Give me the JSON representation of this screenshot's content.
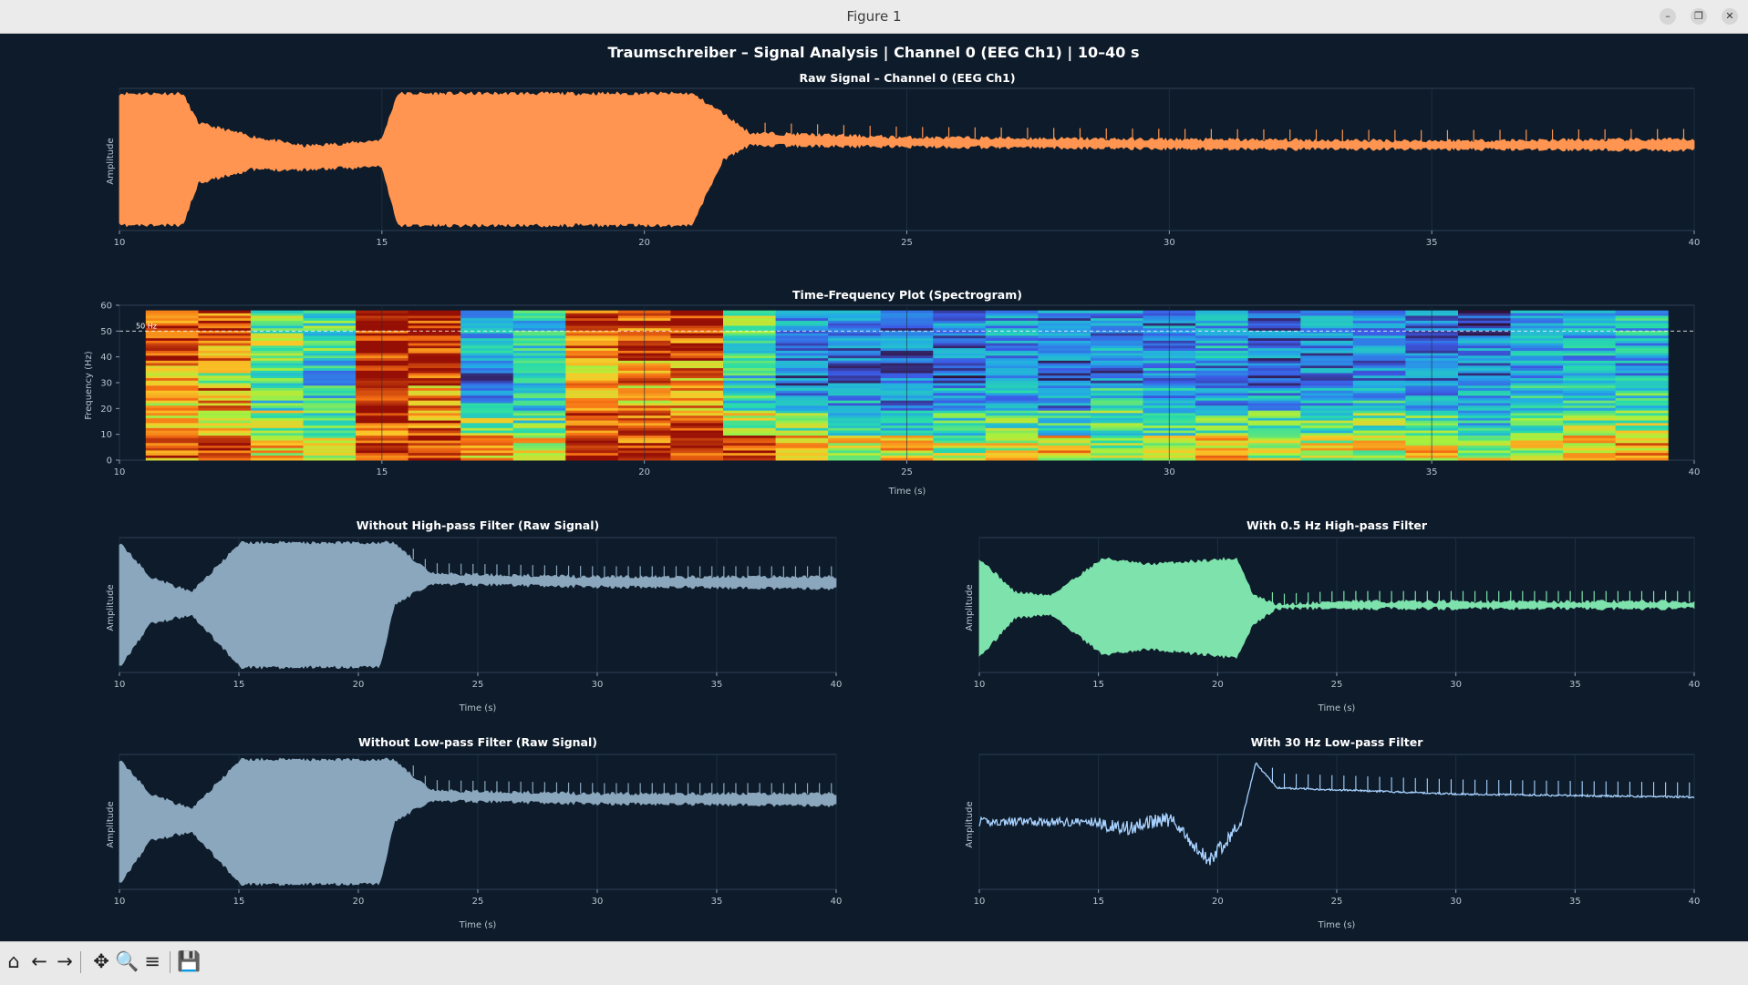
{
  "window": {
    "title": "Figure 1",
    "controls": [
      "–",
      "❐",
      "✕"
    ]
  },
  "figure": {
    "suptitle": "Traumschreiber – Signal Analysis  |  Channel 0 (EEG Ch1)  |  10–40 s"
  },
  "panels": {
    "raw": {
      "title": "Raw Signal – Channel 0 (EEG Ch1)",
      "ylabel": "Amplitude",
      "color": "#ff9550"
    },
    "spectrogram": {
      "title": "Time-Frequency Plot (Spectrogram)",
      "ylabel": "Frequency (Hz)",
      "xlabel": "Time (s)",
      "yticks": [
        "0",
        "10",
        "20",
        "30",
        "40",
        "50",
        "60"
      ],
      "line_label": "50 Hz"
    },
    "no_highpass": {
      "title": "Without High-pass Filter (Raw Signal)",
      "ylabel": "Amplitude",
      "xlabel": "Time (s)",
      "color": "#8aa7bd"
    },
    "highpass": {
      "title": "With 0.5 Hz High-pass Filter",
      "ylabel": "Amplitude",
      "xlabel": "Time (s)",
      "color": "#7de2ab"
    },
    "no_lowpass": {
      "title": "Without Low-pass Filter (Raw Signal)",
      "ylabel": "Amplitude",
      "xlabel": "Time (s)",
      "color": "#8aa7bd"
    },
    "lowpass": {
      "title": "With 30 Hz Low-pass Filter",
      "ylabel": "Amplitude",
      "xlabel": "Time (s)",
      "color": "#a8d2ff"
    },
    "xticks": [
      "10",
      "15",
      "20",
      "25",
      "30",
      "35",
      "40"
    ]
  },
  "toolbar": {
    "home": "⌂",
    "back": "←",
    "forward": "→",
    "pan": "✥",
    "zoom": "🔍",
    "configure": "≡",
    "save": "💾"
  },
  "chart_data": [
    {
      "type": "line",
      "title": "Raw Signal – Channel 0 (EEG Ch1)",
      "ylabel": "Amplitude",
      "xlim": [
        10,
        40
      ],
      "x": [
        10.0,
        10.6,
        11.2,
        11.5,
        12.5,
        13.5,
        14.5,
        15.0,
        15.3,
        18.0,
        20.9,
        21.5,
        22.0,
        25.0,
        30.0,
        35.0,
        40.0
      ],
      "y": [
        0.0,
        0.0,
        0.0,
        0.0,
        0.0,
        0.0,
        0.0,
        0.0,
        0.0,
        0.0,
        0.0,
        0.55,
        0.3,
        0.25,
        0.22,
        0.2,
        0.2
      ],
      "envelope_max": [
        1.0,
        1.0,
        1.0,
        0.55,
        0.35,
        0.2,
        0.25,
        0.3,
        1.0,
        1.0,
        1.0,
        0.7,
        0.4,
        0.33,
        0.3,
        0.28,
        0.3
      ],
      "envelope_min": [
        -1.0,
        -1.0,
        -1.0,
        -0.35,
        -0.15,
        -0.15,
        -0.12,
        -0.1,
        -1.0,
        -1.0,
        -1.0,
        0.0,
        0.22,
        0.2,
        0.17,
        0.16,
        0.15
      ]
    },
    {
      "type": "heatmap",
      "title": "Time-Frequency Plot (Spectrogram)",
      "xlabel": "Time (s)",
      "ylabel": "Frequency (Hz)",
      "xlim": [
        10,
        40
      ],
      "ylim": [
        0,
        60
      ],
      "time_bins_start": 10.5,
      "time_bins_end": 39.5,
      "freq_bins": [
        "0-10",
        "10-20",
        "20-30",
        "30-40",
        "40-50",
        "50-60"
      ],
      "relative_power": [
        [
          0.85,
          0.75,
          0.7,
          0.75,
          0.95,
          0.85
        ],
        [
          0.9,
          0.65,
          0.8,
          0.6,
          0.85,
          0.9
        ],
        [
          0.7,
          0.6,
          0.45,
          0.45,
          0.55,
          0.5
        ],
        [
          0.65,
          0.5,
          0.4,
          0.35,
          0.45,
          0.45
        ],
        [
          0.95,
          0.9,
          0.9,
          0.9,
          0.95,
          0.95
        ],
        [
          0.9,
          0.85,
          0.8,
          0.9,
          0.95,
          0.95
        ],
        [
          0.75,
          0.55,
          0.3,
          0.2,
          0.3,
          0.35
        ],
        [
          0.7,
          0.5,
          0.4,
          0.35,
          0.4,
          0.4
        ],
        [
          0.95,
          0.85,
          0.8,
          0.75,
          0.85,
          0.9
        ],
        [
          0.9,
          0.85,
          0.75,
          0.8,
          0.9,
          0.9
        ],
        [
          0.95,
          0.85,
          0.8,
          0.8,
          0.9,
          0.95
        ],
        [
          0.9,
          0.6,
          0.45,
          0.4,
          0.5,
          0.55
        ],
        [
          0.7,
          0.5,
          0.3,
          0.2,
          0.25,
          0.3
        ],
        [
          0.65,
          0.45,
          0.3,
          0.2,
          0.2,
          0.25
        ],
        [
          0.7,
          0.45,
          0.25,
          0.2,
          0.2,
          0.2
        ],
        [
          0.6,
          0.45,
          0.3,
          0.15,
          0.2,
          0.25
        ],
        [
          0.65,
          0.5,
          0.3,
          0.25,
          0.25,
          0.3
        ],
        [
          0.7,
          0.4,
          0.25,
          0.2,
          0.2,
          0.2
        ],
        [
          0.6,
          0.5,
          0.35,
          0.2,
          0.25,
          0.25
        ],
        [
          0.65,
          0.45,
          0.3,
          0.25,
          0.2,
          0.2
        ],
        [
          0.7,
          0.5,
          0.3,
          0.2,
          0.3,
          0.3
        ],
        [
          0.6,
          0.45,
          0.3,
          0.2,
          0.2,
          0.15
        ],
        [
          0.65,
          0.5,
          0.3,
          0.2,
          0.2,
          0.25
        ],
        [
          0.65,
          0.5,
          0.35,
          0.25,
          0.3,
          0.3
        ],
        [
          0.7,
          0.5,
          0.3,
          0.2,
          0.2,
          0.2
        ],
        [
          0.6,
          0.4,
          0.3,
          0.2,
          0.2,
          0.15
        ],
        [
          0.65,
          0.5,
          0.35,
          0.25,
          0.3,
          0.3
        ],
        [
          0.7,
          0.55,
          0.4,
          0.3,
          0.3,
          0.3
        ],
        [
          0.75,
          0.6,
          0.4,
          0.3,
          0.3,
          0.35
        ]
      ],
      "reference_line_hz": 50
    },
    {
      "type": "line",
      "title": "Without High-pass Filter (Raw Signal)",
      "xlabel": "Time (s)",
      "ylabel": "Amplitude",
      "xlim": [
        10,
        40
      ],
      "x": [
        10,
        11.3,
        13,
        15.1,
        20.9,
        21.5,
        23,
        30,
        40
      ],
      "envelope_max": [
        1.0,
        0.45,
        0.2,
        1.0,
        1.0,
        1.0,
        0.5,
        0.45,
        0.45
      ],
      "envelope_min": [
        -1.0,
        -0.3,
        -0.15,
        -1.0,
        -1.0,
        0.0,
        0.35,
        0.3,
        0.27
      ]
    },
    {
      "type": "line",
      "title": "With 0.5 Hz High-pass Filter",
      "xlabel": "Time (s)",
      "ylabel": "Amplitude",
      "xlim": [
        10,
        40
      ],
      "x": [
        10,
        11.5,
        13,
        15.2,
        17,
        20.8,
        21.5,
        22.5,
        25,
        30,
        40
      ],
      "envelope_max": [
        0.75,
        0.2,
        0.15,
        0.75,
        0.65,
        0.75,
        0.15,
        0.0,
        0.05,
        0.05,
        0.05
      ],
      "envelope_min": [
        -0.85,
        -0.2,
        -0.15,
        -0.8,
        -0.7,
        -0.85,
        -0.3,
        -0.05,
        -0.05,
        -0.05,
        -0.05
      ]
    },
    {
      "type": "line",
      "title": "Without Low-pass Filter (Raw Signal)",
      "xlabel": "Time (s)",
      "ylabel": "Amplitude",
      "xlim": [
        10,
        40
      ],
      "x": [
        10,
        11.3,
        13,
        15.1,
        20.9,
        21.5,
        23,
        30,
        40
      ],
      "envelope_max": [
        1.0,
        0.45,
        0.2,
        1.0,
        1.0,
        1.0,
        0.5,
        0.45,
        0.45
      ],
      "envelope_min": [
        -1.0,
        -0.3,
        -0.15,
        -1.0,
        -1.0,
        0.0,
        0.35,
        0.3,
        0.27
      ]
    },
    {
      "type": "line",
      "title": "With 30 Hz Low-pass Filter",
      "xlabel": "Time (s)",
      "ylabel": "Amplitude",
      "xlim": [
        10,
        40
      ],
      "x": [
        10,
        12,
        15,
        18,
        19.6,
        21,
        21.6,
        22.5,
        30,
        40
      ],
      "y": [
        0.0,
        0.0,
        0.0,
        -0.05,
        -0.55,
        0.0,
        0.95,
        0.55,
        0.45,
        0.4
      ]
    }
  ]
}
